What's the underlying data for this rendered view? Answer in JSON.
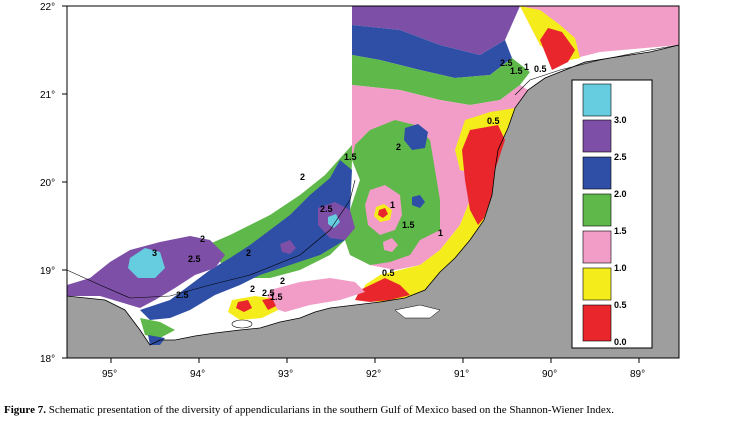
{
  "map": {
    "lat_labels": [
      "22°",
      "21°",
      "20°",
      "19°",
      "18°"
    ],
    "lon_labels": [
      "95°",
      "94°",
      "93°",
      "92°",
      "91°",
      "90°",
      "89°"
    ],
    "contour_labels": [
      "2.5",
      "1.5",
      "1",
      "0.5",
      "0.5",
      "2",
      "1.5",
      "2",
      "2.5",
      "2",
      "2.5",
      "2",
      "2.5",
      "3",
      "2.5",
      "1",
      "1.5",
      "1",
      "0.5",
      "2",
      "1.5",
      "2"
    ],
    "legend": {
      "ticks": [
        "3.0",
        "2.5",
        "2.0",
        "1.5",
        "1.0",
        "0.5",
        "0.0"
      ],
      "classes": [
        {
          "range": "> 3.0",
          "color": "#66cde0"
        },
        {
          "range": "2.5 - 3.0",
          "color": "#7d4fa6"
        },
        {
          "range": "2.0 - 2.5",
          "color": "#2f4fa6"
        },
        {
          "range": "1.5 - 2.0",
          "color": "#5fb84a"
        },
        {
          "range": "1.0 - 1.5",
          "color": "#f29cc8"
        },
        {
          "range": "0.5 - 1.0",
          "color": "#f5ec1c"
        },
        {
          "range": "0.0 - 0.5",
          "color": "#e8262b"
        }
      ]
    },
    "land_color": "#9e9e9e"
  },
  "caption": {
    "label": "Figure 7.",
    "text": " Schematic presentation of the diversity of appendicularians in the southern Gulf of Mexico based on the Shannon-Wiener Index."
  }
}
